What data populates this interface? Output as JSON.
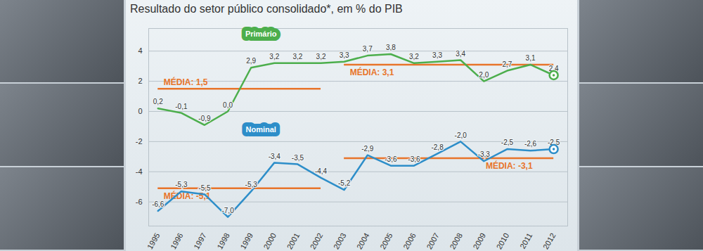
{
  "chart_data": {
    "type": "line",
    "title": "Resultado do setor público consolidado*, em % do PIB",
    "x": [
      1995,
      1996,
      1997,
      1998,
      1999,
      2000,
      2001,
      2002,
      2003,
      2004,
      2005,
      2006,
      2007,
      2008,
      2009,
      2010,
      2011,
      2012
    ],
    "series": [
      {
        "name": "Primário",
        "color": "#4cae4c",
        "values": [
          0.2,
          -0.1,
          -0.9,
          0.0,
          2.9,
          3.2,
          3.2,
          3.2,
          3.3,
          3.7,
          3.8,
          3.2,
          3.3,
          3.4,
          2.0,
          2.7,
          3.1,
          2.4
        ],
        "value_labels": [
          "0,2",
          "-0,1",
          "-0,9",
          "0,0",
          "2,9",
          "3,2",
          "3,2",
          "3,2",
          "3,3",
          "3,7",
          "3,8",
          "3,2",
          "3,3",
          "3,4",
          "2,0",
          "2,7",
          "3,1",
          "2,4"
        ]
      },
      {
        "name": "Nominal",
        "color": "#2d8ec9",
        "values": [
          -6.6,
          -5.3,
          -5.5,
          -7.0,
          -5.3,
          -3.4,
          -3.5,
          -4.4,
          -5.2,
          -2.9,
          -3.6,
          -3.6,
          -2.8,
          -2.0,
          -3.3,
          -2.5,
          -2.6,
          -2.5
        ],
        "value_labels": [
          "-6,6",
          "-5,3",
          "-5,5",
          "-7,0",
          "-5,3",
          "-3,4",
          "-3,5",
          "-4,4",
          "-5,2",
          "-2,9",
          "-3,6",
          "-3,6",
          "-2,8",
          "-2,0",
          "-3,3",
          "-2,5",
          "-2,6",
          "-2,5"
        ]
      }
    ],
    "annotations": [
      {
        "text": "MÉDIA: 1,5",
        "value": 1.5,
        "x": [
          1995,
          2002
        ],
        "color": "#e8742a"
      },
      {
        "text": "MÉDIA: 3,1",
        "value": 3.1,
        "x": [
          2003,
          2012
        ],
        "color": "#e8742a"
      },
      {
        "text": "MÉDIA: -5,1",
        "value": -5.1,
        "x": [
          1995,
          2002
        ],
        "color": "#e8742a"
      },
      {
        "text": "MÉDIA: -3,1",
        "value": -3.1,
        "x": [
          2003,
          2012
        ],
        "color": "#e8742a"
      }
    ],
    "xlim": [
      1994.6,
      2012.6
    ],
    "xticks": [
      1995,
      1996,
      1997,
      1998,
      1999,
      2000,
      2001,
      2002,
      2003,
      2004,
      2005,
      2006,
      2007,
      2008,
      2009,
      2010,
      2011,
      2012
    ],
    "ylim": [
      -7.6,
      5.5
    ],
    "yticks": [
      -6,
      -4,
      -2,
      0,
      2,
      4
    ],
    "grid": true,
    "data_labels": true
  }
}
